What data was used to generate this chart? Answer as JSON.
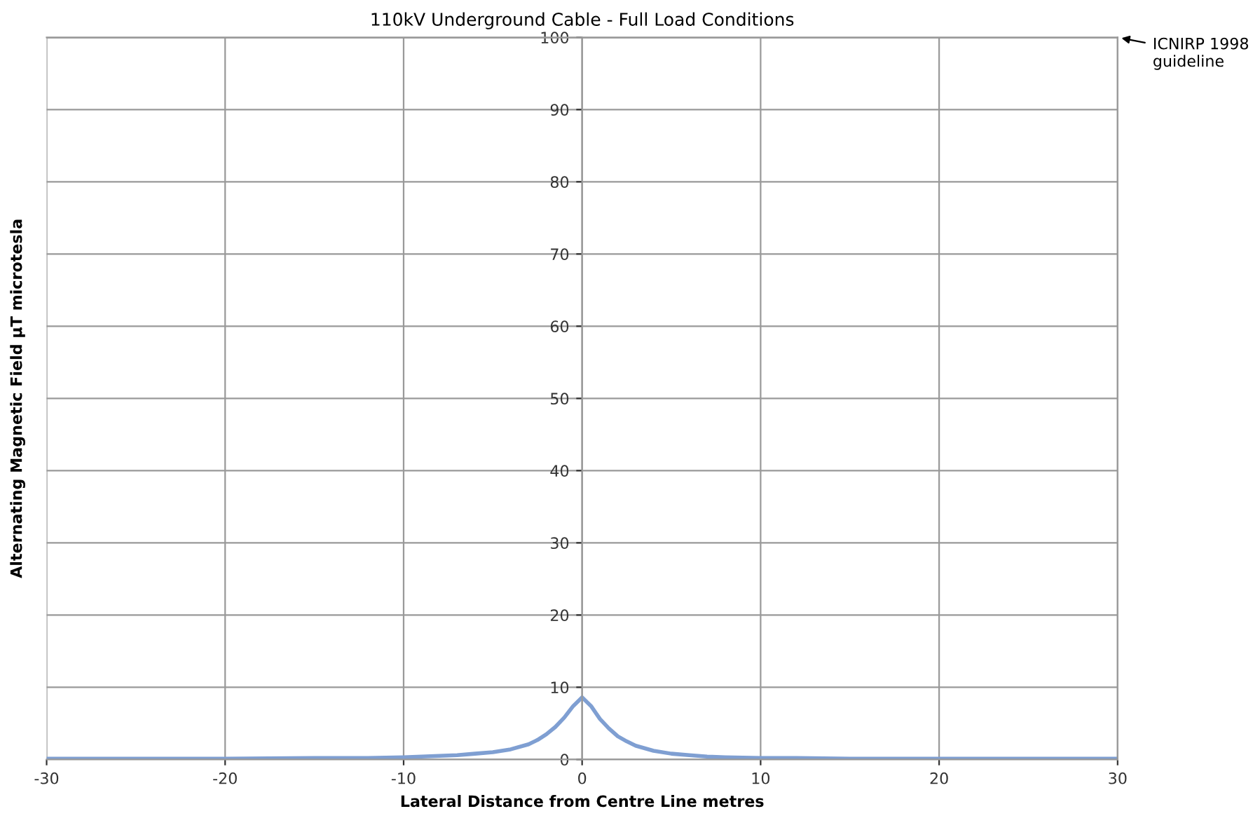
{
  "chart_data": {
    "type": "line",
    "title": "110kV Underground Cable - Full Load Conditions",
    "xlabel": "Lateral Distance from Centre Line metres",
    "ylabel": "Alternating Magnetic Field µT microtesla",
    "x": [
      -30,
      -20,
      -15,
      -12,
      -10,
      -8,
      -7,
      -6,
      -5,
      -4,
      -3,
      -2.5,
      -2,
      -1.5,
      -1,
      -0.5,
      0,
      0.5,
      1,
      1.5,
      2,
      2.5,
      3,
      4,
      5,
      6,
      7,
      8,
      10,
      12,
      15,
      20,
      30
    ],
    "series": [
      {
        "color": "#7f9fd2",
        "values": [
          0.1,
          0.1,
          0.2,
          0.2,
          0.3,
          0.5,
          0.6,
          0.8,
          1.0,
          1.4,
          2.1,
          2.7,
          3.5,
          4.5,
          5.8,
          7.4,
          8.6,
          7.4,
          5.6,
          4.3,
          3.2,
          2.5,
          1.9,
          1.2,
          0.8,
          0.6,
          0.4,
          0.3,
          0.2,
          0.2,
          0.1,
          0.1,
          0.1
        ]
      }
    ],
    "xlim": [
      -30,
      30
    ],
    "ylim": [
      0,
      100
    ],
    "xticks": [
      -30,
      -20,
      -10,
      0,
      10,
      20,
      30
    ],
    "yticks": [
      0,
      10,
      20,
      30,
      40,
      50,
      60,
      70,
      80,
      90,
      100
    ],
    "grid": true,
    "ref_lines": [
      {
        "axis": "y",
        "value": 100,
        "label": "ICNIRP 1998\nguideline",
        "color": "#999999"
      }
    ]
  }
}
